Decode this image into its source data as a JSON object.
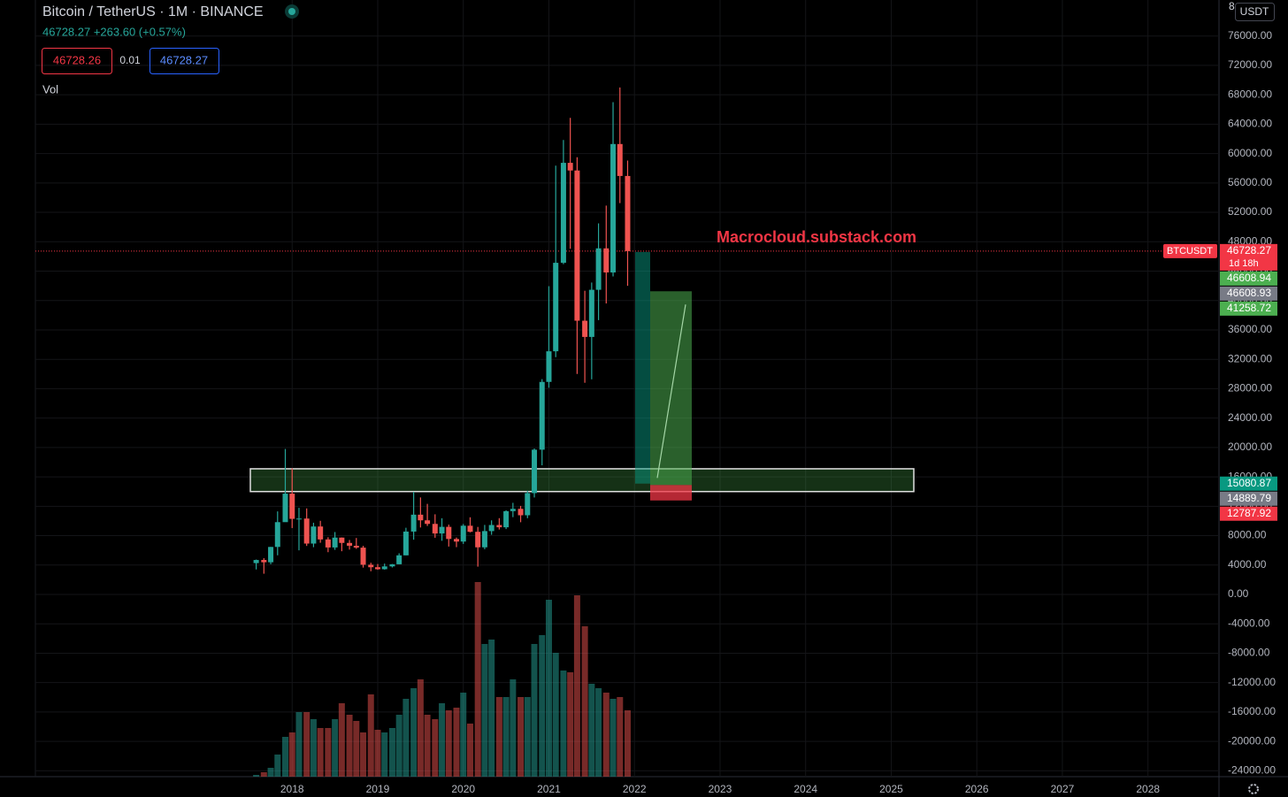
{
  "chart_data": {
    "type": "candlestick",
    "title": "Bitcoin / TetherUS · 1M · BINANCE",
    "quote_line": "46728.27 +263.60 (+0.57%)",
    "bid": "46728.26",
    "spread": "0.01",
    "ask": "46728.27",
    "volume_label": "Vol",
    "watermark": "Macrocloud.substack.com",
    "currency": "USDT",
    "corner_text": "8",
    "up_color": "#26a69a",
    "down_color": "#ef5350",
    "x": [
      2017.58,
      2017.67,
      2017.75,
      2017.83,
      2017.92,
      2018.0,
      2018.08,
      2018.17,
      2018.25,
      2018.33,
      2018.42,
      2018.5,
      2018.58,
      2018.67,
      2018.75,
      2018.83,
      2018.92,
      2019.0,
      2019.08,
      2019.17,
      2019.25,
      2019.33,
      2019.42,
      2019.5,
      2019.58,
      2019.67,
      2019.75,
      2019.83,
      2019.92,
      2020.0,
      2020.08,
      2020.17,
      2020.25,
      2020.33,
      2020.42,
      2020.5,
      2020.58,
      2020.67,
      2020.75,
      2020.83,
      2020.92,
      2021.0,
      2021.08,
      2021.17,
      2021.25,
      2021.33,
      2021.42,
      2021.5,
      2021.58,
      2021.67,
      2021.75,
      2021.83,
      2021.92
    ],
    "open": [
      4261,
      4689,
      4378,
      6463,
      9838,
      13716,
      10285,
      10325,
      6922,
      9246,
      7485,
      6391,
      7735,
      7011,
      6626,
      6370,
      4041,
      3701,
      3434,
      3814,
      4105,
      5320,
      8555,
      10854,
      10085,
      9600,
      8294,
      9199,
      7546,
      7195,
      9352,
      8523,
      6412,
      8620,
      9448,
      9138,
      11335,
      11649,
      10776,
      13791,
      19698,
      28923,
      33092,
      45134,
      58739,
      57697,
      37253,
      35045,
      41461,
      47100,
      43820,
      61300,
      56950
    ],
    "high": [
      4745,
      4939,
      6470,
      11300,
      19798,
      17176,
      11786,
      11710,
      9759,
      10020,
      7786,
      8491,
      7750,
      7410,
      7680,
      6615,
      4312,
      4140,
      4198,
      4140,
      5600,
      9074,
      13970,
      13200,
      12325,
      10905,
      10370,
      9505,
      7750,
      9578,
      10500,
      9188,
      9460,
      10080,
      10380,
      11444,
      12468,
      12050,
      14100,
      19863,
      29300,
      41950,
      58352,
      61844,
      64854,
      59500,
      41330,
      42448,
      50500,
      52920,
      67000,
      69000,
      59053
    ],
    "low": [
      3400,
      2817,
      4110,
      5325,
      10400,
      9035,
      6000,
      6600,
      6430,
      7032,
      5750,
      6070,
      5880,
      6100,
      6205,
      3652,
      3156,
      3349,
      3373,
      3670,
      4096,
      5320,
      7451,
      9111,
      9320,
      7710,
      7300,
      6515,
      6435,
      6871,
      8450,
      3782,
      6150,
      8117,
      8833,
      8893,
      10518,
      9825,
      10375,
      13195,
      17572,
      28130,
      32296,
      44950,
      47044,
      30000,
      28805,
      29278,
      37332,
      39600,
      43283,
      53256,
      42000
    ],
    "close": [
      4689,
      4378,
      6463,
      9838,
      13716,
      10285,
      10325,
      6922,
      9246,
      7485,
      6391,
      7735,
      7011,
      6626,
      6370,
      4041,
      3701,
      3434,
      3814,
      4105,
      5320,
      8555,
      10854,
      10085,
      9600,
      8294,
      9199,
      7546,
      7195,
      9352,
      8523,
      6412,
      8620,
      9448,
      9138,
      11335,
      11649,
      10776,
      13791,
      19698,
      28923,
      33092,
      45134,
      58739,
      57697,
      37253,
      35045,
      41461,
      47100,
      43820,
      61300,
      56950,
      46728.27
    ],
    "volume": [
      20000,
      50000,
      100000,
      250000,
      450000,
      500000,
      730000,
      730000,
      650000,
      550000,
      550000,
      650000,
      830000,
      700000,
      630000,
      500000,
      930000,
      530000,
      500000,
      550000,
      700000,
      880000,
      1000000,
      1100000,
      700000,
      650000,
      830000,
      750000,
      780000,
      950000,
      600000,
      2200000,
      1500000,
      1550000,
      900000,
      900000,
      1100000,
      900000,
      900000,
      1500000,
      1600000,
      2000000,
      1400000,
      1200000,
      1180000,
      2050000,
      1700000,
      1050000,
      1000000,
      950000,
      880000,
      900000,
      750000
    ],
    "vlim": [
      0,
      2400000
    ],
    "xlim": [
      2015,
      2028.83
    ],
    "xticks": [
      2018,
      2019,
      2020,
      2021,
      2022,
      2023,
      2024,
      2025,
      2026,
      2027,
      2028
    ],
    "ylim": [
      -24800,
      80900
    ],
    "yticks": [
      {
        "value": 76000,
        "label": "76000.00"
      },
      {
        "value": 72000,
        "label": "72000.00"
      },
      {
        "value": 68000,
        "label": "68000.00"
      },
      {
        "value": 64000,
        "label": "64000.00"
      },
      {
        "value": 60000,
        "label": "60000.00"
      },
      {
        "value": 56000,
        "label": "56000.00"
      },
      {
        "value": 52000,
        "label": "52000.00"
      },
      {
        "value": 48000,
        "label": "48000.00"
      },
      {
        "value": 44000,
        "label": "44000.00"
      },
      {
        "value": 40000,
        "label": "40000.00"
      },
      {
        "value": 36000,
        "label": "36000.00"
      },
      {
        "value": 32000,
        "label": "32000.00"
      },
      {
        "value": 28000,
        "label": "28000.00"
      },
      {
        "value": 24000,
        "label": "24000.00"
      },
      {
        "value": 20000,
        "label": "20000.00"
      },
      {
        "value": 16000,
        "label": "16000.00"
      },
      {
        "value": 12000,
        "label": "12000.00"
      },
      {
        "value": 8000,
        "label": "8000.00"
      },
      {
        "value": 4000,
        "label": "4000.00"
      },
      {
        "value": 0,
        "label": "0.00"
      },
      {
        "value": -4000,
        "label": "-4000.00"
      },
      {
        "value": -8000,
        "label": "-8000.00"
      },
      {
        "value": -12000,
        "label": "-12000.00"
      },
      {
        "value": -16000,
        "label": "-16000.00"
      },
      {
        "value": -20000,
        "label": "-20000.00"
      },
      {
        "value": -24000,
        "label": "-24000.00"
      }
    ],
    "grid": true,
    "last_price": {
      "name": "BTCUSDT",
      "value": 46728.27,
      "countdown": "1d 18h",
      "color": "#f23645"
    },
    "levels": [
      46608.94,
      46608.93,
      41258.72,
      15080.87,
      14889.79,
      12787.92
    ],
    "level_colors": [
      "#4caf50",
      "#787b86",
      "#4caf50",
      "#089981",
      "#787b86",
      "#f23645"
    ],
    "zone": {
      "low": 14000,
      "high": 17100
    }
  }
}
